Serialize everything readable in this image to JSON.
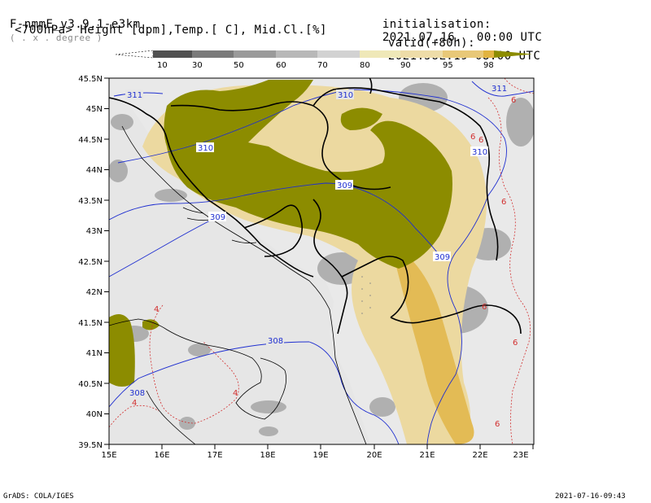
{
  "header": {
    "model": "F-nmmE_v3.9.1-e3km",
    "units_note": "( . x . degree )",
    "subtitle": "<700hPa> Height [dpm],Temp.[ C], Mid.Cl.[%]",
    "init_label": "initialisation:",
    "init_value": "2021.07.16.  00:00 UTC",
    "valid_label": "valid(+80h):",
    "valid_value": "2021.JUL.19 08:00 UTC"
  },
  "colorbar": {
    "labels": [
      "10",
      "30",
      "50",
      "60",
      "70",
      "80",
      "90",
      "95",
      "98"
    ],
    "colors": [
      "#505050",
      "#7a7a7a",
      "#9a9a9a",
      "#b8b8b8",
      "#d2d2d2",
      "#efe8b8",
      "#eedca8",
      "#e8c878",
      "#e2b440",
      "#8c8c00"
    ]
  },
  "map": {
    "lat_labels": [
      "45.5N",
      "45N",
      "44.5N",
      "44N",
      "43.5N",
      "43N",
      "42.5N",
      "42N",
      "41.5N",
      "41N",
      "40.5N",
      "40N",
      "39.5N"
    ],
    "lon_labels": [
      "15E",
      "16E",
      "17E",
      "18E",
      "19E",
      "20E",
      "21E",
      "22E",
      "23E"
    ],
    "height_contours": [
      "311",
      "310",
      "310",
      "310",
      "309",
      "309",
      "309",
      "308",
      "308",
      "311"
    ],
    "temp_contours": [
      "4",
      "4",
      "4",
      "6",
      "6",
      "6",
      "6",
      "6",
      "6",
      "6"
    ],
    "colors": {
      "background": "#e6e6e6",
      "cloud_max": "#8c8c00",
      "height_line": "#1f2fd0",
      "temp_line": "#d23030",
      "border": "#000000"
    }
  },
  "footer": {
    "left": "GrADS: COLA/IGES",
    "right": "2021-07-16-09:43"
  }
}
